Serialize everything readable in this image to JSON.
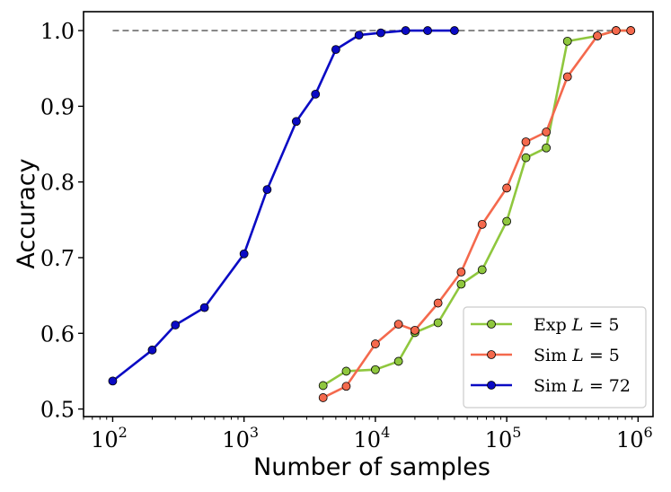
{
  "chart_data": {
    "type": "line",
    "title": "",
    "xlabel": "Number of samples",
    "ylabel": "Accuracy",
    "xscale": "log",
    "xlim": [
      60,
      1300000
    ],
    "ylim": [
      0.49,
      1.025
    ],
    "x_ticks": [
      {
        "base": "10",
        "exp": "2",
        "value": 100
      },
      {
        "base": "10",
        "exp": "3",
        "value": 1000
      },
      {
        "base": "10",
        "exp": "4",
        "value": 10000
      },
      {
        "base": "10",
        "exp": "5",
        "value": 100000
      },
      {
        "base": "10",
        "exp": "6",
        "value": 1000000
      }
    ],
    "y_ticks": [
      {
        "label": "0.5",
        "value": 0.5
      },
      {
        "label": "0.6",
        "value": 0.6
      },
      {
        "label": "0.7",
        "value": 0.7
      },
      {
        "label": "0.8",
        "value": 0.8
      },
      {
        "label": "0.9",
        "value": 0.9
      },
      {
        "label": "1.0",
        "value": 1.0
      }
    ],
    "reference_line": {
      "y": 1.0,
      "x_start": 100,
      "x_end": 800000,
      "color": "#808080",
      "style": "dashed"
    },
    "legend_position": "lower-right",
    "series": [
      {
        "name": "Exp",
        "name_var": "L",
        "name_value": "= 5",
        "color": "#8fc73e",
        "x": [
          4000,
          6000,
          10000,
          15000,
          20000,
          30000,
          45000,
          65000,
          100000,
          140000,
          200000,
          290000,
          490000,
          680000,
          880000
        ],
        "y": [
          0.531,
          0.55,
          0.552,
          0.563,
          0.601,
          0.614,
          0.665,
          0.684,
          0.748,
          0.832,
          0.845,
          0.986,
          0.993,
          1.0,
          1.0
        ]
      },
      {
        "name": "Sim",
        "name_var": "L",
        "name_value": "= 5",
        "color": "#f4694d",
        "x": [
          4000,
          6000,
          10000,
          15000,
          20000,
          30000,
          45000,
          65000,
          100000,
          140000,
          200000,
          290000,
          490000,
          680000,
          880000
        ],
        "y": [
          0.515,
          0.53,
          0.586,
          0.612,
          0.604,
          0.64,
          0.681,
          0.744,
          0.792,
          0.853,
          0.866,
          0.939,
          0.993,
          1.0,
          1.0
        ]
      },
      {
        "name": "Sim",
        "name_var": "L",
        "name_value": "= 72",
        "color": "#0a0ac4",
        "x": [
          100,
          200,
          300,
          500,
          1000,
          1500,
          2500,
          3500,
          5000,
          7500,
          11000,
          17000,
          25000,
          40000
        ],
        "y": [
          0.537,
          0.578,
          0.611,
          0.634,
          0.705,
          0.79,
          0.88,
          0.916,
          0.975,
          0.994,
          0.997,
          1.0,
          1.0,
          1.0
        ]
      }
    ]
  }
}
